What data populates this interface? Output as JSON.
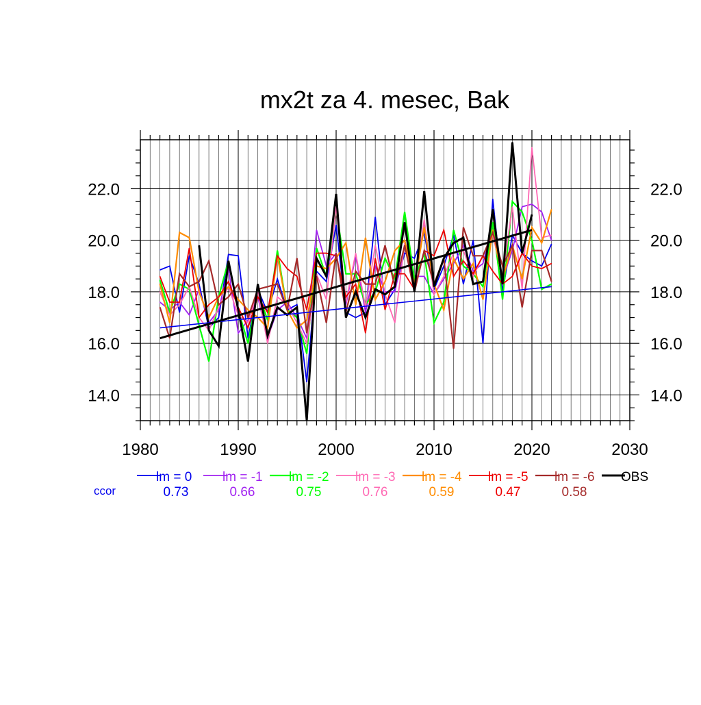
{
  "chart_data": {
    "type": "line",
    "title": "mx2t za 4. mesec, Bak",
    "xlabel": "",
    "ylabel": "",
    "xlim": [
      1980,
      2030
    ],
    "ylim": [
      13.0,
      23.9
    ],
    "x_ticks": [
      1980,
      1990,
      2000,
      2010,
      2020,
      2030
    ],
    "x_tick_labels": [
      "1980",
      "1990",
      "2000",
      "2010",
      "2020",
      "2030"
    ],
    "y_ticks": [
      14.0,
      16.0,
      18.0,
      20.0,
      22.0
    ],
    "y_tick_labels": [
      "14.0",
      "16.0",
      "18.0",
      "20.0",
      "22.0"
    ],
    "grid": true,
    "legend_position": "bottom",
    "ccor_label": "ccor",
    "years": [
      1982,
      1983,
      1984,
      1985,
      1986,
      1987,
      1988,
      1989,
      1990,
      1991,
      1992,
      1993,
      1994,
      1995,
      1996,
      1997,
      1998,
      1999,
      2000,
      2001,
      2002,
      2003,
      2004,
      2005,
      2006,
      2007,
      2008,
      2009,
      2010,
      2011,
      2012,
      2013,
      2014,
      2015,
      2016,
      2017,
      2018,
      2019,
      2020,
      2021,
      2022
    ],
    "series": [
      {
        "name": "lm = 0",
        "ccor": "0.73",
        "color": "#0000ee",
        "width": 1.8,
        "values": [
          18.85,
          19.0,
          17.2,
          19.4,
          18.3,
          16.6,
          17.0,
          19.45,
          19.4,
          16.2,
          18.1,
          17.2,
          18.5,
          17.3,
          17.5,
          14.5,
          18.8,
          18.4,
          20.6,
          17.2,
          17.0,
          17.2,
          20.9,
          17.5,
          18.1,
          19.5,
          19.3,
          20.3,
          18.1,
          19.0,
          20.2,
          18.3,
          20.0,
          16.0,
          21.6,
          18.0,
          20.2,
          19.5,
          19.2,
          19.0,
          19.85
        ]
      },
      {
        "name": "lm = -1",
        "ccor": "0.66",
        "color": "#a020f0",
        "width": 1.8,
        "values": [
          17.6,
          17.3,
          17.6,
          17.1,
          18.1,
          16.8,
          17.3,
          18.9,
          16.4,
          16.9,
          17.8,
          16.2,
          17.3,
          17.6,
          17.0,
          16.2,
          20.4,
          19.0,
          19.5,
          17.5,
          19.4,
          17.2,
          19.0,
          18.0,
          18.0,
          19.8,
          18.6,
          18.6,
          17.9,
          18.5,
          19.1,
          19.8,
          18.8,
          19.1,
          20.6,
          18.5,
          19.6,
          21.3,
          21.4,
          21.1,
          20.0
        ]
      },
      {
        "name": "lm = -2",
        "ccor": "0.75",
        "color": "#00ff00",
        "width": 2.2,
        "values": [
          18.45,
          17.2,
          18.3,
          18.1,
          16.7,
          15.3,
          17.8,
          19.2,
          17.3,
          16.0,
          18.0,
          16.9,
          19.6,
          17.3,
          17.0,
          15.6,
          19.7,
          18.6,
          21.2,
          18.7,
          18.7,
          17.5,
          18.0,
          19.3,
          18.5,
          21.1,
          18.5,
          19.5,
          16.8,
          17.6,
          20.4,
          19.0,
          18.7,
          18.2,
          20.7,
          17.7,
          21.5,
          21.1,
          20.0,
          18.1,
          18.3
        ]
      },
      {
        "name": "lm = -3",
        "ccor": "0.76",
        "color": "#ff69b4",
        "width": 1.8,
        "values": [
          18.0,
          17.1,
          17.5,
          18.2,
          17.0,
          16.5,
          17.4,
          18.2,
          17.1,
          16.8,
          18.0,
          16.0,
          17.8,
          17.5,
          16.8,
          16.0,
          18.7,
          17.7,
          21.3,
          17.6,
          19.5,
          17.4,
          19.8,
          17.9,
          16.8,
          19.9,
          18.1,
          20.8,
          17.9,
          18.6,
          19.5,
          19.6,
          18.6,
          19.4,
          20.2,
          18.6,
          21.3,
          18.1,
          23.6,
          20.1,
          20.2
        ]
      },
      {
        "name": "lm = -4",
        "ccor": "0.59",
        "color": "#ff8c00",
        "width": 2.2,
        "values": [
          18.3,
          16.8,
          20.3,
          20.1,
          18.0,
          17.0,
          17.8,
          18.2,
          17.7,
          17.3,
          17.0,
          16.6,
          19.4,
          17.3,
          16.6,
          16.9,
          19.0,
          18.9,
          19.3,
          19.9,
          17.5,
          20.1,
          17.7,
          18.4,
          19.6,
          20.0,
          18.3,
          20.5,
          18.3,
          17.3,
          19.3,
          18.5,
          19.1,
          17.7,
          20.4,
          18.5,
          19.8,
          18.5,
          20.5,
          19.9,
          21.2
        ]
      },
      {
        "name": "lm = -5",
        "ccor": "0.47",
        "color": "#ee0000",
        "width": 1.8,
        "values": [
          18.6,
          17.6,
          17.6,
          19.7,
          17.0,
          17.5,
          17.8,
          18.4,
          17.4,
          16.6,
          17.8,
          17.2,
          19.4,
          18.9,
          18.6,
          17.3,
          19.5,
          19.5,
          19.4,
          17.8,
          18.3,
          16.4,
          19.3,
          17.3,
          18.7,
          18.7,
          18.1,
          19.6,
          19.4,
          20.4,
          18.6,
          19.2,
          18.7,
          19.4,
          18.8,
          18.3,
          18.6,
          19.5,
          19.0,
          18.9,
          19.1
        ]
      },
      {
        "name": "lm = -6",
        "ccor": "0.58",
        "color": "#a52a2a",
        "width": 2.2,
        "values": [
          17.4,
          16.2,
          18.7,
          18.2,
          18.4,
          19.2,
          17.5,
          17.8,
          18.3,
          17.0,
          18.1,
          18.2,
          18.3,
          17.3,
          19.3,
          16.4,
          18.6,
          16.8,
          19.5,
          17.2,
          18.8,
          18.3,
          18.3,
          19.8,
          18.2,
          19.8,
          18.0,
          19.6,
          18.3,
          19.3,
          15.8,
          20.5,
          19.4,
          19.4,
          20.3,
          19.0,
          19.8,
          17.4,
          19.6,
          19.6,
          18.4
        ]
      },
      {
        "name": "OBS",
        "ccor": "",
        "color": "#000000",
        "width": 3.0,
        "startIndex": 4,
        "values": [
          null,
          null,
          null,
          null,
          19.8,
          16.5,
          15.9,
          19.2,
          17.3,
          15.3,
          18.3,
          16.3,
          17.4,
          17.1,
          17.4,
          13.0,
          19.3,
          18.6,
          21.8,
          17.0,
          18.0,
          17.0,
          18.1,
          17.9,
          18.2,
          20.7,
          18.0,
          21.9,
          18.2,
          19.3,
          19.9,
          20.1,
          18.3,
          18.4,
          21.2,
          18.3,
          23.8,
          19.5,
          21.0,
          null,
          null
        ]
      }
    ],
    "trends": [
      {
        "series": "lm = 0",
        "color": "#0000ee",
        "width": 1.6,
        "x": [
          1982,
          2022
        ],
        "y": [
          16.6,
          18.2
        ]
      },
      {
        "series": "OBS",
        "color": "#000000",
        "width": 3.0,
        "x": [
          1982,
          2020
        ],
        "y": [
          16.2,
          20.4
        ]
      }
    ]
  }
}
